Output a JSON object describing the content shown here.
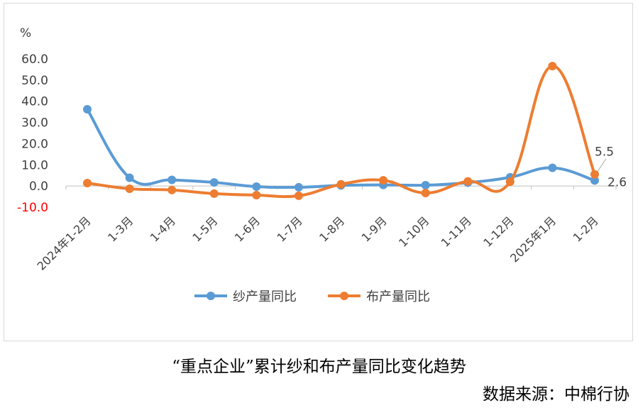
{
  "chart_data": {
    "type": "line",
    "unit_label": "%",
    "categories": [
      "2024年1-2月",
      "1-3月",
      "1-4月",
      "1-5月",
      "1-6月",
      "1-7月",
      "1-8月",
      "1-9月",
      "1-10月",
      "1-11月",
      "1-12月",
      "2025年1月",
      "1-2月"
    ],
    "series": [
      {
        "name": "纱产量同比",
        "color": "#5b9bd5",
        "values": [
          36.2,
          3.9,
          2.9,
          1.7,
          -0.3,
          -0.6,
          0.3,
          0.5,
          0.4,
          1.6,
          4.1,
          8.6,
          2.6
        ]
      },
      {
        "name": "布产量同比",
        "color": "#ed7d31",
        "values": [
          1.4,
          -1.3,
          -1.9,
          -3.6,
          -4.3,
          -4.6,
          0.8,
          2.7,
          -3.3,
          2.2,
          2.0,
          56.6,
          5.5
        ]
      }
    ],
    "ylim": [
      -10,
      60
    ],
    "yticks": [
      "60.0",
      "50.0",
      "40.0",
      "30.0",
      "20.0",
      "10.0",
      "0.0",
      "-10.0"
    ],
    "negative_tick_color": "#ff0000",
    "data_labels": [
      {
        "series": 0,
        "index": 12,
        "text": "2.6"
      },
      {
        "series": 1,
        "index": 12,
        "text": "5.5"
      }
    ],
    "grid": false,
    "legend_position": "bottom"
  },
  "caption": {
    "title": "“重点企业”累计纱和布产量同比变化趋势",
    "source": "数据来源：中棉行协"
  }
}
